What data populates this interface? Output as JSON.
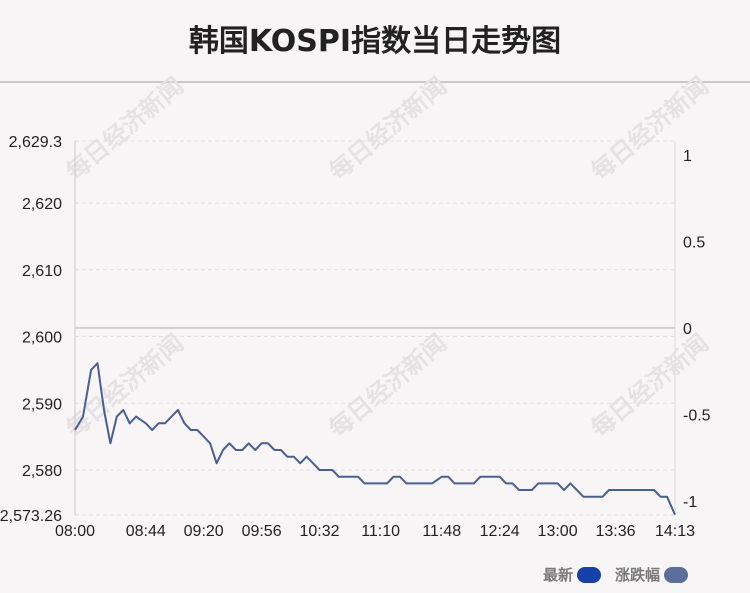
{
  "chart_data": {
    "type": "line",
    "title": "韩国KOSPI指数当日走势图",
    "watermark": "每日经济新闻",
    "x_ticks": [
      "08:00",
      "08:44",
      "09:20",
      "09:56",
      "10:32",
      "11:10",
      "11:48",
      "12:24",
      "13:00",
      "13:36",
      "14:13"
    ],
    "y_left_ticks": [
      2573.26,
      2580,
      2590,
      2600,
      2610,
      2620,
      2629.3
    ],
    "y_left_tick_labels": [
      "2,573.26",
      "2,580",
      "2,590",
      "2,600",
      "2,610",
      "2,620",
      "2,629.3"
    ],
    "y_left_range": [
      2573.26,
      2629.3
    ],
    "y_right_ticks": [
      -1,
      -0.5,
      0,
      0.5,
      1
    ],
    "y_right_tick_labels": [
      "-1",
      "-0.5",
      "0",
      "0.5",
      "1"
    ],
    "y_right_range": [
      -1.08,
      1.08
    ],
    "reference_value": 2601.3,
    "grid": true,
    "legend_position": "bottom-right",
    "series": [
      {
        "name": "最新",
        "color": "#1740a8",
        "x": [
          "08:00",
          "08:05",
          "08:10",
          "08:14",
          "08:18",
          "08:22",
          "08:26",
          "08:30",
          "08:34",
          "08:38",
          "08:44",
          "08:48",
          "08:52",
          "08:56",
          "09:00",
          "09:04",
          "09:08",
          "09:12",
          "09:16",
          "09:20",
          "09:24",
          "09:28",
          "09:32",
          "09:36",
          "09:40",
          "09:44",
          "09:48",
          "09:52",
          "09:56",
          "10:00",
          "10:04",
          "10:08",
          "10:12",
          "10:16",
          "10:20",
          "10:24",
          "10:28",
          "10:32",
          "10:36",
          "10:40",
          "10:44",
          "10:48",
          "10:52",
          "10:56",
          "11:00",
          "11:04",
          "11:10",
          "11:14",
          "11:18",
          "11:22",
          "11:26",
          "11:30",
          "11:34",
          "11:38",
          "11:42",
          "11:48",
          "11:52",
          "11:56",
          "12:00",
          "12:04",
          "12:08",
          "12:12",
          "12:16",
          "12:20",
          "12:24",
          "12:28",
          "12:32",
          "12:36",
          "12:40",
          "12:44",
          "12:48",
          "12:52",
          "12:56",
          "13:00",
          "13:04",
          "13:08",
          "13:12",
          "13:16",
          "13:20",
          "13:24",
          "13:28",
          "13:32",
          "13:36",
          "13:40",
          "13:44",
          "13:48",
          "13:52",
          "13:56",
          "14:00",
          "14:04",
          "14:08",
          "14:13"
        ],
        "values": [
          2586,
          2588,
          2595,
          2596,
          2589,
          2584,
          2588,
          2589,
          2587,
          2588,
          2587,
          2586,
          2587,
          2587,
          2588,
          2589,
          2587,
          2586,
          2586,
          2585,
          2584,
          2581,
          2583,
          2584,
          2583,
          2583,
          2584,
          2583,
          2584,
          2584,
          2583,
          2583,
          2582,
          2582,
          2581,
          2582,
          2581,
          2580,
          2580,
          2580,
          2579,
          2579,
          2579,
          2579,
          2578,
          2578,
          2578,
          2578,
          2579,
          2579,
          2578,
          2578,
          2578,
          2578,
          2578,
          2579,
          2579,
          2578,
          2578,
          2578,
          2578,
          2579,
          2579,
          2579,
          2579,
          2578,
          2578,
          2577,
          2577,
          2577,
          2578,
          2578,
          2578,
          2578,
          2577,
          2578,
          2577,
          2576,
          2576,
          2576,
          2576,
          2577,
          2577,
          2577,
          2577,
          2577,
          2577,
          2577,
          2577,
          2576,
          2576,
          2573.3
        ]
      },
      {
        "name": "涨跌幅",
        "color": "#5c6e99"
      }
    ]
  }
}
